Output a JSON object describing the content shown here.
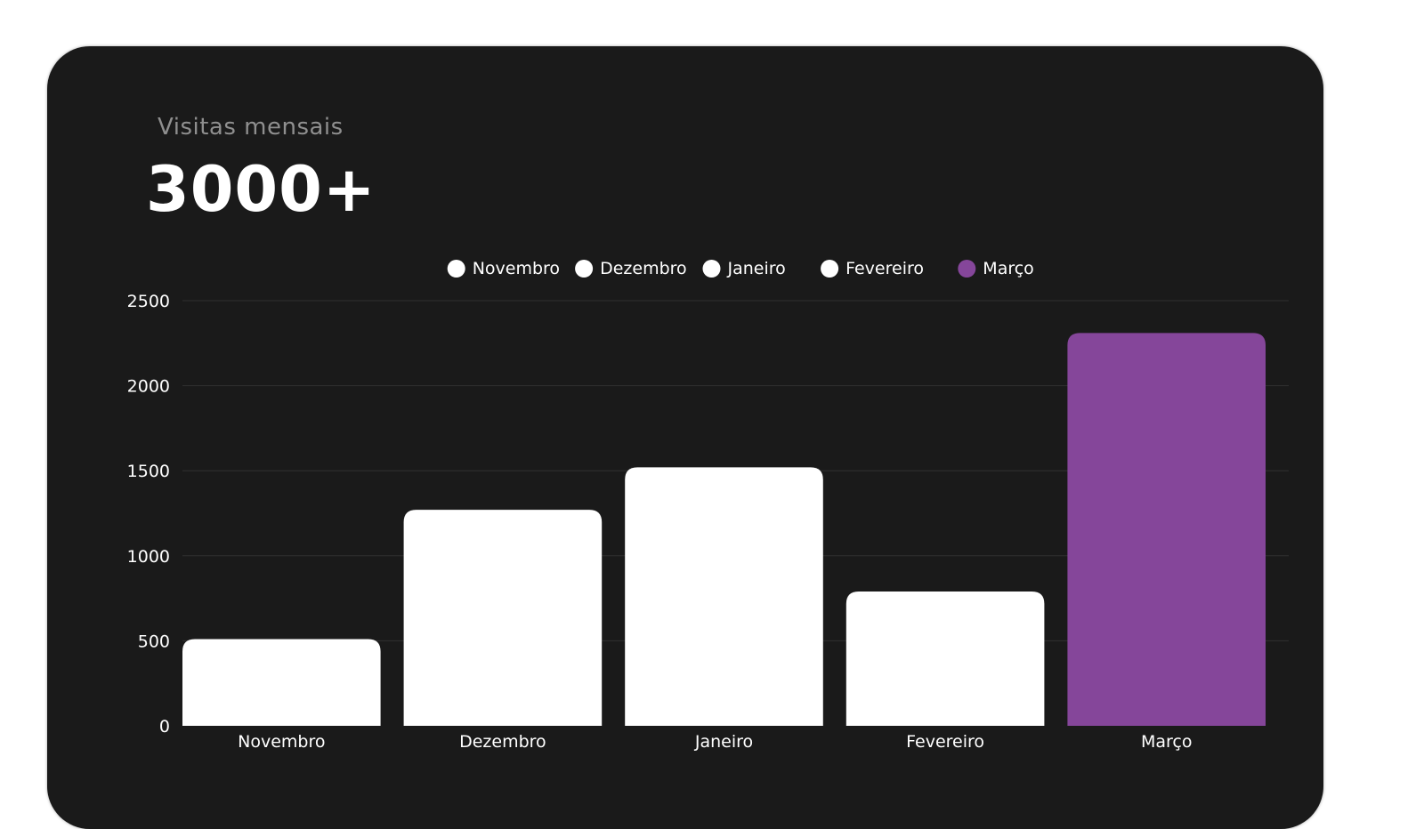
{
  "header": {
    "subtitle": "Visitas mensais",
    "headline": "3000+"
  },
  "colors": {
    "background": "#ffffff",
    "card": "#1a1a1a",
    "bar_default": "#ffffff",
    "bar_highlight": "#85469a",
    "text": "#ffffff",
    "muted_text": "#8f8f8f",
    "grid": "#303030"
  },
  "chart_data": {
    "type": "bar",
    "categories": [
      "Novembro",
      "Dezembro",
      "Janeiro",
      "Fevereiro",
      "Março"
    ],
    "values": [
      510,
      1270,
      1520,
      790,
      2310
    ],
    "highlight_category": "Março",
    "ylim": [
      0,
      2500
    ],
    "yticks": [
      0,
      500,
      1000,
      1500,
      2000,
      2500
    ],
    "legend": [
      "Novembro",
      "Dezembro",
      "Janeiro",
      "Fevereiro",
      "Março"
    ],
    "legend_position": "top-center",
    "grid": true,
    "xlabel": "",
    "ylabel": ""
  }
}
